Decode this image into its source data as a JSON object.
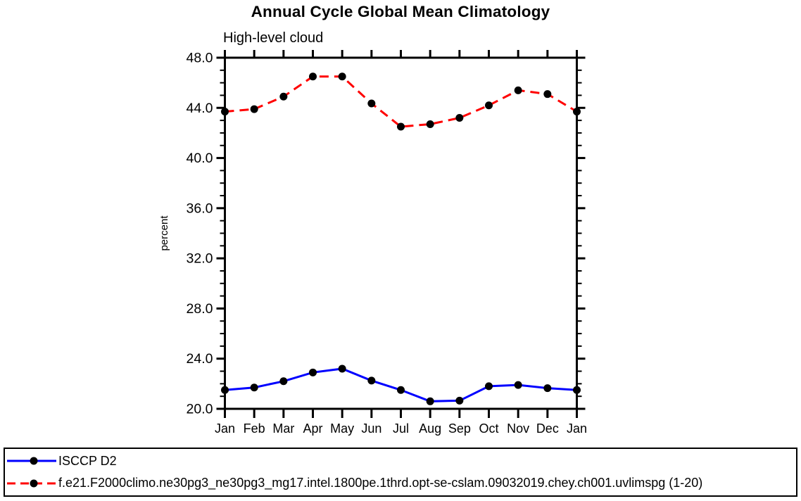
{
  "chart_data": {
    "type": "line",
    "title": "Annual Cycle Global Mean Climatology",
    "subtitle": "High-level cloud",
    "xlabel": "",
    "ylabel": "percent",
    "categories": [
      "Jan",
      "Feb",
      "Mar",
      "Apr",
      "May",
      "Jun",
      "Jul",
      "Aug",
      "Sep",
      "Oct",
      "Nov",
      "Dec",
      "Jan"
    ],
    "ylim": [
      20.0,
      48.0
    ],
    "ytick_major": [
      20,
      24,
      28,
      32,
      36,
      40,
      44,
      48
    ],
    "ytick_labels": [
      "20.0",
      "24.0",
      "28.0",
      "32.0",
      "36.0",
      "40.0",
      "44.0",
      "48.0"
    ],
    "ytick_minor_step": 1,
    "grid": false,
    "legend_position": "bottom-left-box",
    "axis_color": "#000000",
    "marker_color": "#000000",
    "series": [
      {
        "name": "ISCCP D2",
        "color": "#0000ff",
        "style": "solid",
        "marker": "circle",
        "marker_color": "#000000",
        "values": [
          21.5,
          21.7,
          22.2,
          22.9,
          23.2,
          22.25,
          21.5,
          20.6,
          20.65,
          21.8,
          21.9,
          21.65,
          21.5
        ]
      },
      {
        "name": "f.e21.F2000climo.ne30pg3_ne30pg3_mg17.intel.1800pe.1thrd.opt-se-cslam.09032019.chey.ch001.uvlimspg (1-20)",
        "color": "#ff0000",
        "style": "dashed",
        "marker": "circle",
        "marker_color": "#000000",
        "values": [
          43.7,
          43.9,
          44.9,
          46.5,
          46.5,
          44.35,
          42.5,
          42.7,
          43.2,
          44.2,
          45.4,
          45.1,
          43.7
        ]
      }
    ]
  }
}
